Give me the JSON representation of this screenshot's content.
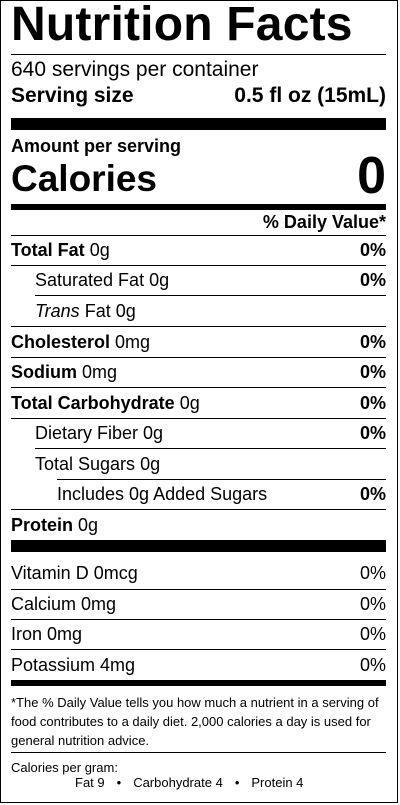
{
  "title": "Nutrition Facts",
  "servings_per_container": "640 servings per container",
  "serving_size_label": "Serving size",
  "serving_size_value": "0.5 fl oz (15mL)",
  "amount_per_serving": "Amount per serving",
  "calories_label": "Calories",
  "calories_value": "0",
  "daily_value_header": "% Daily Value*",
  "nutrients": [
    {
      "name": "Total Fat",
      "amount": "0g",
      "dv": "0%"
    },
    {
      "name": "Saturated Fat",
      "amount": "0g",
      "dv": "0%"
    },
    {
      "name": "Trans",
      "amount": "Fat 0g",
      "dv": ""
    },
    {
      "name": "Cholesterol",
      "amount": "0mg",
      "dv": "0%"
    },
    {
      "name": "Sodium",
      "amount": "0mg",
      "dv": "0%"
    },
    {
      "name": "Total Carbohydrate",
      "amount": "0g",
      "dv": "0%"
    },
    {
      "name": "Dietary Fiber",
      "amount": "0g",
      "dv": "0%"
    },
    {
      "name": "Total Sugars",
      "amount": "0g",
      "dv": ""
    },
    {
      "name": "Includes 0g Added Sugars",
      "amount": "",
      "dv": "0%"
    },
    {
      "name": "Protein",
      "amount": "0g",
      "dv": ""
    }
  ],
  "vitamins": [
    {
      "name": "Vitamin D 0mcg",
      "dv": "0%"
    },
    {
      "name": "Calcium 0mg",
      "dv": "0%"
    },
    {
      "name": "Iron 0mg",
      "dv": "0%"
    },
    {
      "name": "Potassium 4mg",
      "dv": "0%"
    }
  ],
  "footnote": "*The % Daily Value tells you how much a nutrient in a serving of food contributes to a daily diet. 2,000 calories a day is used for general nutrition advice.",
  "calories_per_gram_label": "Calories per gram:",
  "calories_per_gram": {
    "fat": "Fat 9",
    "carbohydrate": "Carbohydrate 4",
    "protein": "Protein 4",
    "separator": "•"
  }
}
